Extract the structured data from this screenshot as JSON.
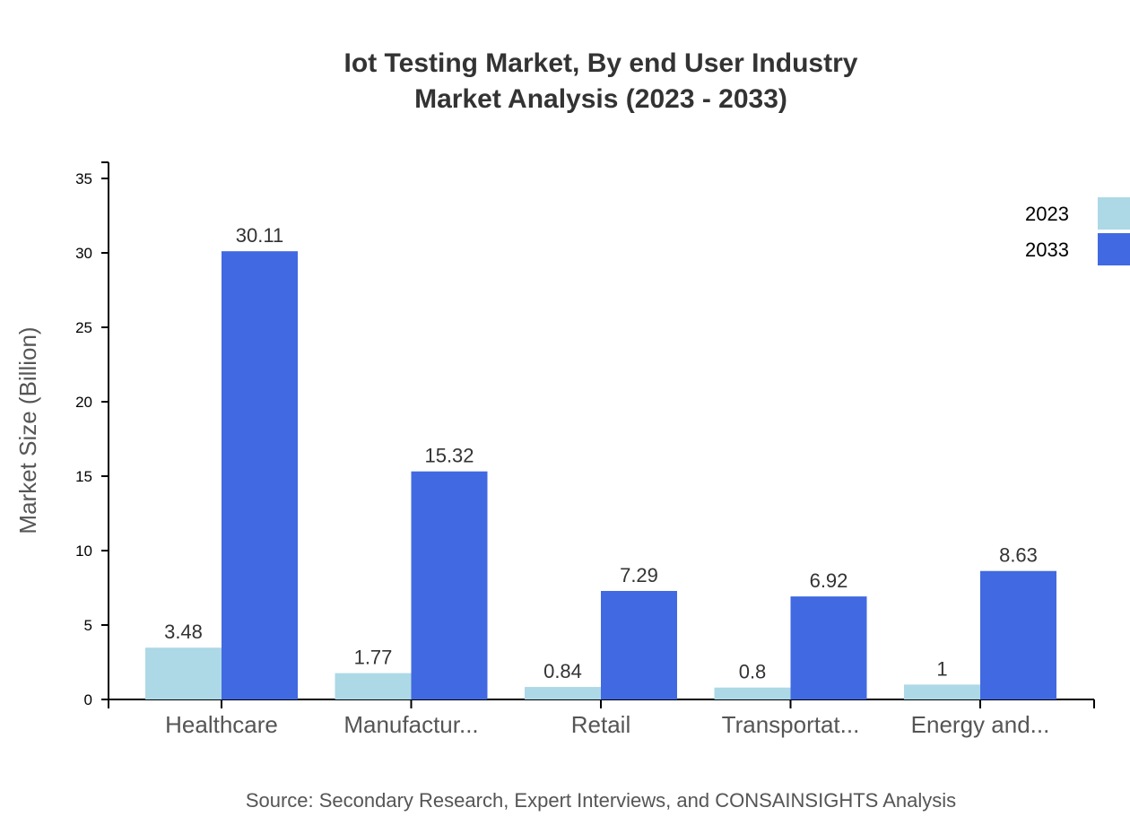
{
  "chart_data": {
    "type": "bar",
    "title": [
      "Iot Testing Market, By end User Industry",
      "Market Analysis (2023 - 2033)"
    ],
    "xlabel": "",
    "ylabel": "Market Size (Billion)",
    "categories": [
      "Healthcare",
      "Manufactur...",
      "Retail",
      "Transportat...",
      "Energy and..."
    ],
    "series": [
      {
        "name": "2023",
        "color": "#add8e6",
        "values": [
          3.48,
          1.77,
          0.84,
          0.8,
          1
        ]
      },
      {
        "name": "2033",
        "color": "#4169e1",
        "values": [
          30.11,
          15.32,
          7.29,
          6.92,
          8.63
        ]
      }
    ],
    "ylim": [
      0,
      36
    ],
    "yticks": [
      0,
      5,
      10,
      15,
      20,
      25,
      30,
      35
    ],
    "grid": false,
    "legend": "top-right",
    "source": "Source: Secondary Research, Expert Interviews, and CONSAINSIGHTS Analysis"
  }
}
